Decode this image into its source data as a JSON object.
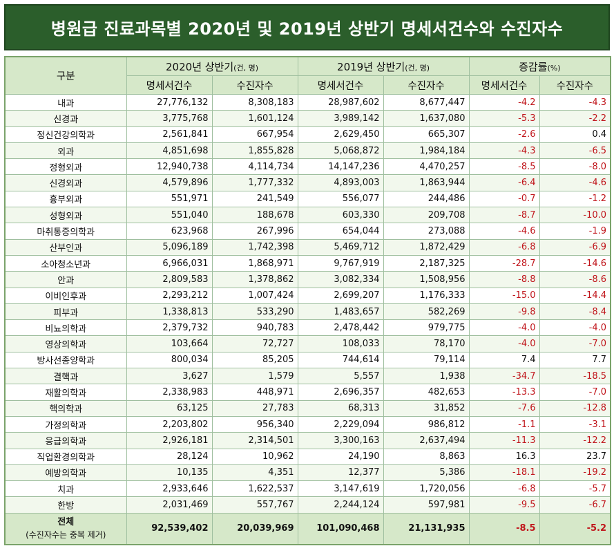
{
  "title": "병원급 진료과목별 2020년 및 2019년 상반기 명세서건수와 수진자수",
  "header": {
    "category": "구분",
    "group2020": "2020년 상반기",
    "group2020_unit": "(건, 명)",
    "group2019": "2019년 상반기",
    "group2019_unit": "(건, 명)",
    "change": "증감률",
    "change_unit": "(%)",
    "claims": "명세서건수",
    "patients": "수진자수"
  },
  "rows": [
    {
      "name": "내과",
      "c20": "27,776,132",
      "p20": "8,308,183",
      "c19": "28,987,602",
      "p19": "8,677,447",
      "rc": "-4.2",
      "rp": "-4.3"
    },
    {
      "name": "신경과",
      "c20": "3,775,768",
      "p20": "1,601,124",
      "c19": "3,989,142",
      "p19": "1,637,080",
      "rc": "-5.3",
      "rp": "-2.2"
    },
    {
      "name": "정신건강의학과",
      "c20": "2,561,841",
      "p20": "667,954",
      "c19": "2,629,450",
      "p19": "665,307",
      "rc": "-2.6",
      "rp": "0.4"
    },
    {
      "name": "외과",
      "c20": "4,851,698",
      "p20": "1,855,828",
      "c19": "5,068,872",
      "p19": "1,984,184",
      "rc": "-4.3",
      "rp": "-6.5"
    },
    {
      "name": "정형외과",
      "c20": "12,940,738",
      "p20": "4,114,734",
      "c19": "14,147,236",
      "p19": "4,470,257",
      "rc": "-8.5",
      "rp": "-8.0"
    },
    {
      "name": "신경외과",
      "c20": "4,579,896",
      "p20": "1,777,332",
      "c19": "4,893,003",
      "p19": "1,863,944",
      "rc": "-6.4",
      "rp": "-4.6"
    },
    {
      "name": "흉부외과",
      "c20": "551,971",
      "p20": "241,549",
      "c19": "556,077",
      "p19": "244,486",
      "rc": "-0.7",
      "rp": "-1.2"
    },
    {
      "name": "성형외과",
      "c20": "551,040",
      "p20": "188,678",
      "c19": "603,330",
      "p19": "209,708",
      "rc": "-8.7",
      "rp": "-10.0"
    },
    {
      "name": "마취통증의학과",
      "c20": "623,968",
      "p20": "267,996",
      "c19": "654,044",
      "p19": "273,088",
      "rc": "-4.6",
      "rp": "-1.9"
    },
    {
      "name": "산부인과",
      "c20": "5,096,189",
      "p20": "1,742,398",
      "c19": "5,469,712",
      "p19": "1,872,429",
      "rc": "-6.8",
      "rp": "-6.9"
    },
    {
      "name": "소아청소년과",
      "c20": "6,966,031",
      "p20": "1,868,971",
      "c19": "9,767,919",
      "p19": "2,187,325",
      "rc": "-28.7",
      "rp": "-14.6"
    },
    {
      "name": "안과",
      "c20": "2,809,583",
      "p20": "1,378,862",
      "c19": "3,082,334",
      "p19": "1,508,956",
      "rc": "-8.8",
      "rp": "-8.6"
    },
    {
      "name": "이비인후과",
      "c20": "2,293,212",
      "p20": "1,007,424",
      "c19": "2,699,207",
      "p19": "1,176,333",
      "rc": "-15.0",
      "rp": "-14.4"
    },
    {
      "name": "피부과",
      "c20": "1,338,813",
      "p20": "533,290",
      "c19": "1,483,657",
      "p19": "582,269",
      "rc": "-9.8",
      "rp": "-8.4"
    },
    {
      "name": "비뇨의학과",
      "c20": "2,379,732",
      "p20": "940,783",
      "c19": "2,478,442",
      "p19": "979,775",
      "rc": "-4.0",
      "rp": "-4.0"
    },
    {
      "name": "영상의학과",
      "c20": "103,664",
      "p20": "72,727",
      "c19": "108,033",
      "p19": "78,170",
      "rc": "-4.0",
      "rp": "-7.0"
    },
    {
      "name": "방사선종양학과",
      "c20": "800,034",
      "p20": "85,205",
      "c19": "744,614",
      "p19": "79,114",
      "rc": "7.4",
      "rp": "7.7"
    },
    {
      "name": "결핵과",
      "c20": "3,627",
      "p20": "1,579",
      "c19": "5,557",
      "p19": "1,938",
      "rc": "-34.7",
      "rp": "-18.5"
    },
    {
      "name": "재활의학과",
      "c20": "2,338,983",
      "p20": "448,971",
      "c19": "2,696,357",
      "p19": "482,653",
      "rc": "-13.3",
      "rp": "-7.0"
    },
    {
      "name": "핵의학과",
      "c20": "63,125",
      "p20": "27,783",
      "c19": "68,313",
      "p19": "31,852",
      "rc": "-7.6",
      "rp": "-12.8"
    },
    {
      "name": "가정의학과",
      "c20": "2,203,802",
      "p20": "956,340",
      "c19": "2,229,094",
      "p19": "986,812",
      "rc": "-1.1",
      "rp": "-3.1"
    },
    {
      "name": "응급의학과",
      "c20": "2,926,181",
      "p20": "2,314,501",
      "c19": "3,300,163",
      "p19": "2,637,494",
      "rc": "-11.3",
      "rp": "-12.2"
    },
    {
      "name": "직업환경의학과",
      "c20": "28,124",
      "p20": "10,962",
      "c19": "24,190",
      "p19": "8,863",
      "rc": "16.3",
      "rp": "23.7"
    },
    {
      "name": "예방의학과",
      "c20": "10,135",
      "p20": "4,351",
      "c19": "12,377",
      "p19": "5,386",
      "rc": "-18.1",
      "rp": "-19.2"
    },
    {
      "name": "치과",
      "c20": "2,933,646",
      "p20": "1,622,537",
      "c19": "3,147,619",
      "p19": "1,720,056",
      "rc": "-6.8",
      "rp": "-5.7"
    },
    {
      "name": "한방",
      "c20": "2,031,469",
      "p20": "557,767",
      "c19": "2,244,124",
      "p19": "597,981",
      "rc": "-9.5",
      "rp": "-6.7"
    }
  ],
  "total": {
    "name": "전체",
    "note": "(수진자수는 중복 제거)",
    "c20": "92,539,402",
    "p20": "20,039,969",
    "c19": "101,090,468",
    "p19": "21,131,935",
    "rc": "-8.5",
    "rp": "-5.2"
  },
  "colors": {
    "title_bg": "#2b5e2b",
    "header_bg": "#d6e8c9",
    "negative": "#c0151b"
  }
}
